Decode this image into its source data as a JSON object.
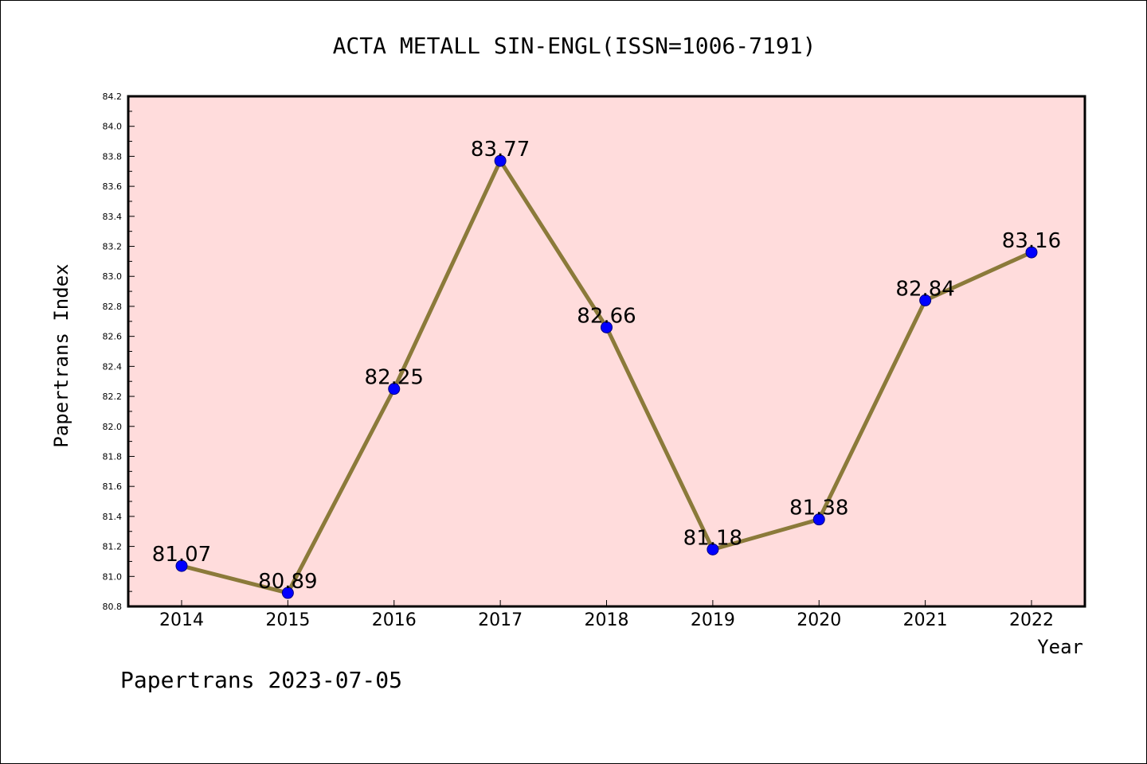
{
  "footer": {
    "text": "Papertrans 2023-07-05"
  },
  "chart_data": {
    "type": "line",
    "title": "ACTA METALL SIN-ENGL(ISSN=1006-7191)",
    "xlabel": "Year",
    "ylabel": "Papertrans Index",
    "categories": [
      "2014",
      "2015",
      "2016",
      "2017",
      "2018",
      "2019",
      "2020",
      "2021",
      "2022"
    ],
    "series": [
      {
        "values": [
          81.07,
          80.89,
          82.25,
          83.77,
          82.66,
          81.18,
          81.38,
          82.84,
          83.16
        ]
      }
    ],
    "data_labels": [
      "81.07",
      "80.89",
      "82.25",
      "83.77",
      "82.66",
      "81.18",
      "81.38",
      "82.84",
      "83.16"
    ],
    "ylim": [
      80.8,
      84.2
    ],
    "y_ticks": [
      "80.8",
      "81.0",
      "81.2",
      "81.4",
      "81.6",
      "81.8",
      "82.0",
      "82.2",
      "82.4",
      "82.6",
      "82.8",
      "83.0",
      "83.2",
      "83.4",
      "83.6",
      "83.8",
      "84.0",
      "84.2"
    ],
    "grid": false,
    "colors": {
      "plot_background": "#ffdcdc",
      "line": "#8b7a3a",
      "marker": "#0000ff",
      "marker_edge": "#000080"
    }
  }
}
